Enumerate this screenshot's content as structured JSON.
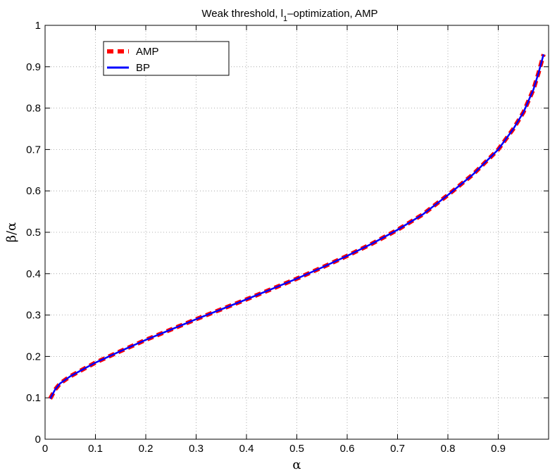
{
  "chart_data": {
    "type": "line",
    "title_parts": {
      "pre": "Weak threshold, l",
      "sub": "1",
      "post": "–optimization, AMP"
    },
    "xlabel": "α",
    "ylabel": "β/α",
    "xlim": [
      0,
      1
    ],
    "ylim": [
      0,
      1
    ],
    "xticks": [
      0,
      0.1,
      0.2,
      0.3,
      0.4,
      0.5,
      0.6,
      0.7,
      0.8,
      0.9
    ],
    "xtick_labels": [
      "0",
      "0.1",
      "0.2",
      "0.3",
      "0.4",
      "0.5",
      "0.6",
      "0.7",
      "0.8",
      "0.9"
    ],
    "yticks": [
      0,
      0.1,
      0.2,
      0.3,
      0.4,
      0.5,
      0.6,
      0.7,
      0.8,
      0.9,
      1
    ],
    "ytick_labels": [
      "0",
      "0.1",
      "0.2",
      "0.3",
      "0.4",
      "0.5",
      "0.6",
      "0.7",
      "0.8",
      "0.9",
      "1"
    ],
    "grid": true,
    "legend_position": "top-left",
    "series": [
      {
        "name": "AMP",
        "color": "#ff0000",
        "style": "dashed",
        "x": [
          0.01,
          0.02,
          0.03,
          0.05,
          0.08,
          0.1,
          0.15,
          0.2,
          0.25,
          0.3,
          0.35,
          0.4,
          0.45,
          0.5,
          0.55,
          0.6,
          0.65,
          0.7,
          0.75,
          0.8,
          0.85,
          0.9,
          0.93,
          0.95,
          0.97,
          0.98,
          0.99
        ],
        "y": [
          0.098,
          0.12,
          0.135,
          0.152,
          0.172,
          0.185,
          0.213,
          0.24,
          0.265,
          0.29,
          0.314,
          0.338,
          0.363,
          0.388,
          0.415,
          0.443,
          0.473,
          0.506,
          0.543,
          0.59,
          0.64,
          0.7,
          0.75,
          0.79,
          0.845,
          0.885,
          0.93
        ]
      },
      {
        "name": "BP",
        "color": "#0000ff",
        "style": "solid",
        "x": [
          0.01,
          0.02,
          0.03,
          0.05,
          0.08,
          0.1,
          0.15,
          0.2,
          0.25,
          0.3,
          0.35,
          0.4,
          0.45,
          0.5,
          0.55,
          0.6,
          0.65,
          0.7,
          0.75,
          0.8,
          0.85,
          0.9,
          0.93,
          0.95,
          0.97,
          0.98,
          0.99
        ],
        "y": [
          0.098,
          0.12,
          0.135,
          0.152,
          0.172,
          0.185,
          0.213,
          0.24,
          0.265,
          0.29,
          0.314,
          0.338,
          0.363,
          0.388,
          0.415,
          0.443,
          0.473,
          0.506,
          0.543,
          0.59,
          0.64,
          0.7,
          0.75,
          0.79,
          0.845,
          0.885,
          0.93
        ]
      }
    ]
  }
}
